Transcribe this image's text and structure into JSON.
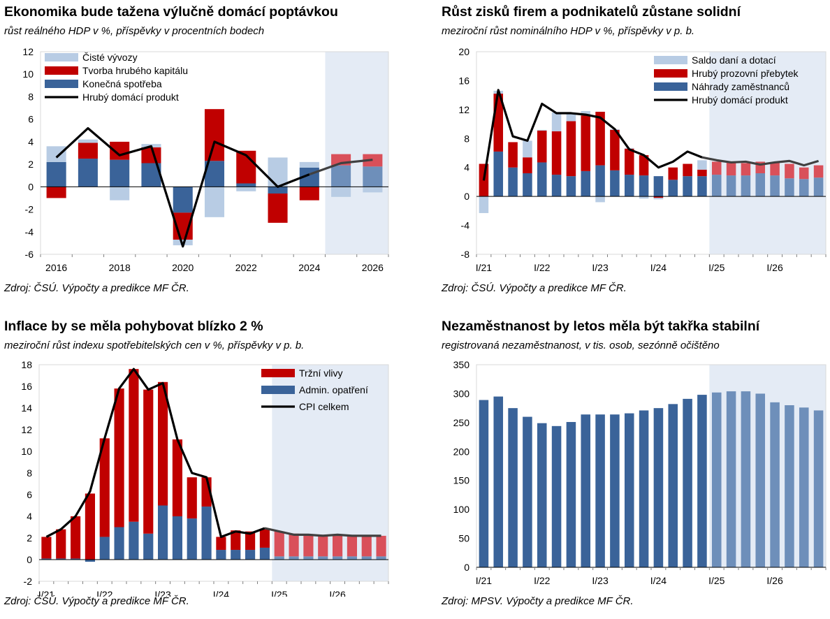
{
  "colors": {
    "light_blue": "#b8cce4",
    "red": "#c00000",
    "dark_blue": "#3a6399",
    "black": "#000000",
    "forecast_bg": "#e4ebf5",
    "fc_red": "#d9505a",
    "fc_blue": "#6e8fba",
    "fc_line": "#404040"
  },
  "panels": [
    {
      "title": "Ekonomika bude tažena výlučně domácí poptávkou",
      "subtitle": "růst reálného HDP v %, příspěvky v procentních bodech",
      "source": "Zdroj: ČSÚ. Výpočty a predikce MF ČR."
    },
    {
      "title": "Růst zisků firem a podnikatelů zůstane solidní",
      "subtitle": "meziroční růst nominálního HDP v %, příspěvky v p. b.",
      "source": "Zdroj: ČSÚ. Výpočty a predikce MF ČR."
    },
    {
      "title": "Inflace by se měla pohybovat blízko 2 %",
      "subtitle": "meziroční růst indexu spotřebitelských cen v %, příspěvky v p. b.",
      "source": "Zdroj: ČSÚ. Výpočty a predikce MF ČR."
    },
    {
      "title": "Nezaměstnanost by letos měla být takřka stabilní",
      "subtitle": "registrovaná nezaměstnanost, v tis. osob, sezónně očištěno",
      "source": "Zdroj: MPSV. Výpočty a predikce MF ČR."
    }
  ],
  "chart_data": [
    {
      "type": "bar",
      "stacked": true,
      "title": "Ekonomika bude tažena výlučně domácí poptávkou",
      "categories": [
        "2016",
        "2017",
        "2018",
        "2019",
        "2020",
        "2021",
        "2022",
        "2023",
        "2024",
        "2025",
        "2026"
      ],
      "tick_labels": [
        "2016",
        "2018",
        "2020",
        "2022",
        "2024",
        "2026"
      ],
      "forecast_from": "2025",
      "ylim": [
        -6,
        12
      ],
      "yticks": [
        -6,
        -4,
        -2,
        0,
        2,
        4,
        6,
        8,
        10,
        12
      ],
      "legend_position": "top-left",
      "series": [
        {
          "name": "Čisté vývozy",
          "kind": "bar",
          "color": "light_blue",
          "values": [
            1.4,
            0.3,
            -1.2,
            0.3,
            -0.5,
            -2.7,
            -0.4,
            2.6,
            0.5,
            -0.9,
            -0.5
          ]
        },
        {
          "name": "Tvorba hrubého kapitálu",
          "kind": "bar",
          "color": "red",
          "values": [
            -1.0,
            1.4,
            1.6,
            1.4,
            -2.4,
            4.6,
            2.9,
            -2.6,
            -1.2,
            1.0,
            1.1
          ]
        },
        {
          "name": "Konečná spotřeba",
          "kind": "bar",
          "color": "dark_blue",
          "values": [
            2.2,
            2.5,
            2.4,
            2.1,
            -2.3,
            2.3,
            0.3,
            -0.6,
            1.7,
            1.9,
            1.8
          ]
        },
        {
          "name": "Hrubý domácí produkt",
          "kind": "line",
          "color": "black",
          "values": [
            2.6,
            5.2,
            2.8,
            3.6,
            -5.3,
            4.0,
            2.8,
            0.0,
            1.1,
            2.1,
            2.4
          ]
        }
      ]
    },
    {
      "type": "bar",
      "stacked": true,
      "title": "Růst zisků firem a podnikatelů zůstane solidní",
      "categories": [
        "I/21",
        "II/21",
        "III/21",
        "IV/21",
        "I/22",
        "II/22",
        "III/22",
        "IV/22",
        "I/23",
        "II/23",
        "III/23",
        "IV/23",
        "I/24",
        "II/24",
        "III/24",
        "IV/24",
        "I/25",
        "II/25",
        "III/25",
        "IV/25",
        "I/26",
        "II/26",
        "III/26",
        "IV/26"
      ],
      "tick_labels": [
        "I/21",
        "I/22",
        "I/23",
        "I/24",
        "I/25",
        "I/26"
      ],
      "forecast_from": "I/25",
      "ylim": [
        -8,
        20
      ],
      "yticks": [
        -8,
        -4,
        0,
        4,
        8,
        12,
        16,
        20
      ],
      "legend_position": "top-right",
      "series": [
        {
          "name": "Saldo daní a dotací",
          "kind": "bar",
          "color": "light_blue",
          "values": [
            -2.3,
            0.4,
            0.0,
            2.3,
            0.1,
            2.6,
            1.2,
            0.6,
            -0.8,
            0.1,
            0.1,
            -0.3,
            -0.2,
            0.0,
            0.0,
            1.3,
            0.0,
            0.0,
            0.0,
            0.0,
            0.0,
            0.0,
            0.0,
            0.0
          ]
        },
        {
          "name": "Hrubý prozovní přebytek",
          "kind": "bar",
          "color": "red",
          "values": [
            4.5,
            8.0,
            3.5,
            2.2,
            4.4,
            6.0,
            7.6,
            7.7,
            7.4,
            5.6,
            3.6,
            2.8,
            -0.2,
            1.7,
            1.7,
            0.9,
            1.8,
            1.8,
            1.7,
            1.6,
            1.8,
            2.0,
            1.6,
            1.7
          ]
        },
        {
          "name": "Náhrady zaměstnanců",
          "kind": "bar",
          "color": "dark_blue",
          "values": [
            0.0,
            6.2,
            4.0,
            3.2,
            4.7,
            3.0,
            2.8,
            3.5,
            4.3,
            3.6,
            3.0,
            2.9,
            2.8,
            2.3,
            2.8,
            2.8,
            3.0,
            2.9,
            2.9,
            3.2,
            2.9,
            2.5,
            2.4,
            2.6
          ]
        },
        {
          "name": "Hrubý domácí produkt",
          "kind": "line",
          "color": "black",
          "values": [
            2.2,
            14.7,
            8.3,
            7.7,
            12.8,
            11.5,
            11.5,
            11.3,
            10.9,
            9.3,
            6.5,
            5.7,
            4.0,
            4.8,
            6.2,
            5.4,
            5.0,
            4.7,
            4.8,
            4.4,
            4.7,
            4.9,
            4.3,
            4.9
          ]
        }
      ]
    },
    {
      "type": "bar",
      "stacked": true,
      "title": "Inflace by se měla pohybovat blízko 2 %",
      "categories": [
        "I/21",
        "II/21",
        "III/21",
        "IV/21",
        "I/22",
        "II/22",
        "III/22",
        "IV/22",
        "I/23",
        "II/23",
        "III/23",
        "IV/23",
        "I/24",
        "II/24",
        "III/24",
        "IV/24",
        "I/25",
        "II/25",
        "III/25",
        "IV/25",
        "I/26",
        "II/26",
        "III/26",
        "IV/26"
      ],
      "tick_labels": [
        "I/21",
        "I/22",
        "I/23",
        "I/24",
        "I/25",
        "I/26"
      ],
      "forecast_from": "I/25",
      "ylim": [
        -2,
        18
      ],
      "yticks": [
        -2,
        0,
        2,
        4,
        6,
        8,
        10,
        12,
        14,
        16,
        18
      ],
      "legend_position": "top-right",
      "series": [
        {
          "name": "Tržní vlivy",
          "kind": "bar",
          "color": "red",
          "values": [
            2.0,
            2.7,
            3.9,
            6.1,
            9.1,
            12.8,
            14.1,
            13.3,
            11.4,
            7.1,
            3.8,
            2.7,
            1.2,
            1.8,
            1.7,
            1.7,
            2.3,
            2.1,
            2.0,
            2.0,
            2.0,
            1.9,
            1.9,
            1.9
          ]
        },
        {
          "name": "Admin. opatření",
          "kind": "bar",
          "color": "dark_blue",
          "values": [
            0.1,
            0.1,
            0.1,
            -0.2,
            2.1,
            3.0,
            3.5,
            2.4,
            5.0,
            4.0,
            3.8,
            4.9,
            0.9,
            0.9,
            0.9,
            1.1,
            0.3,
            0.3,
            0.3,
            0.3,
            0.3,
            0.3,
            0.3,
            0.3
          ]
        },
        {
          "name": "CPI celkem",
          "kind": "line",
          "color": "black",
          "values": [
            2.1,
            2.8,
            4.0,
            6.3,
            11.2,
            15.8,
            17.6,
            15.7,
            16.3,
            11.1,
            8.0,
            7.6,
            2.1,
            2.6,
            2.4,
            2.9,
            2.6,
            2.3,
            2.3,
            2.2,
            2.3,
            2.2,
            2.2,
            2.2
          ]
        }
      ]
    },
    {
      "type": "bar",
      "title": "Nezaměstnanost by letos měla být takřka stabilní",
      "categories": [
        "I/21",
        "II/21",
        "III/21",
        "IV/21",
        "I/22",
        "II/22",
        "III/22",
        "IV/22",
        "I/23",
        "II/23",
        "III/23",
        "IV/23",
        "I/24",
        "II/24",
        "III/24",
        "IV/24",
        "I/25",
        "II/25",
        "III/25",
        "IV/25",
        "I/26",
        "II/26",
        "III/26",
        "IV/26"
      ],
      "tick_labels": [
        "I/21",
        "I/22",
        "I/23",
        "I/24",
        "I/25",
        "I/26"
      ],
      "forecast_from": "I/25",
      "ylim": [
        0,
        350
      ],
      "yticks": [
        0,
        50,
        100,
        150,
        200,
        250,
        300,
        350
      ],
      "series": [
        {
          "name": "",
          "kind": "bar",
          "color": "dark_blue",
          "values": [
            289,
            295,
            275,
            260,
            249,
            244,
            251,
            264,
            264,
            264,
            266,
            271,
            275,
            282,
            291,
            298,
            302,
            304,
            304,
            300,
            285,
            280,
            276,
            271
          ]
        }
      ]
    }
  ]
}
